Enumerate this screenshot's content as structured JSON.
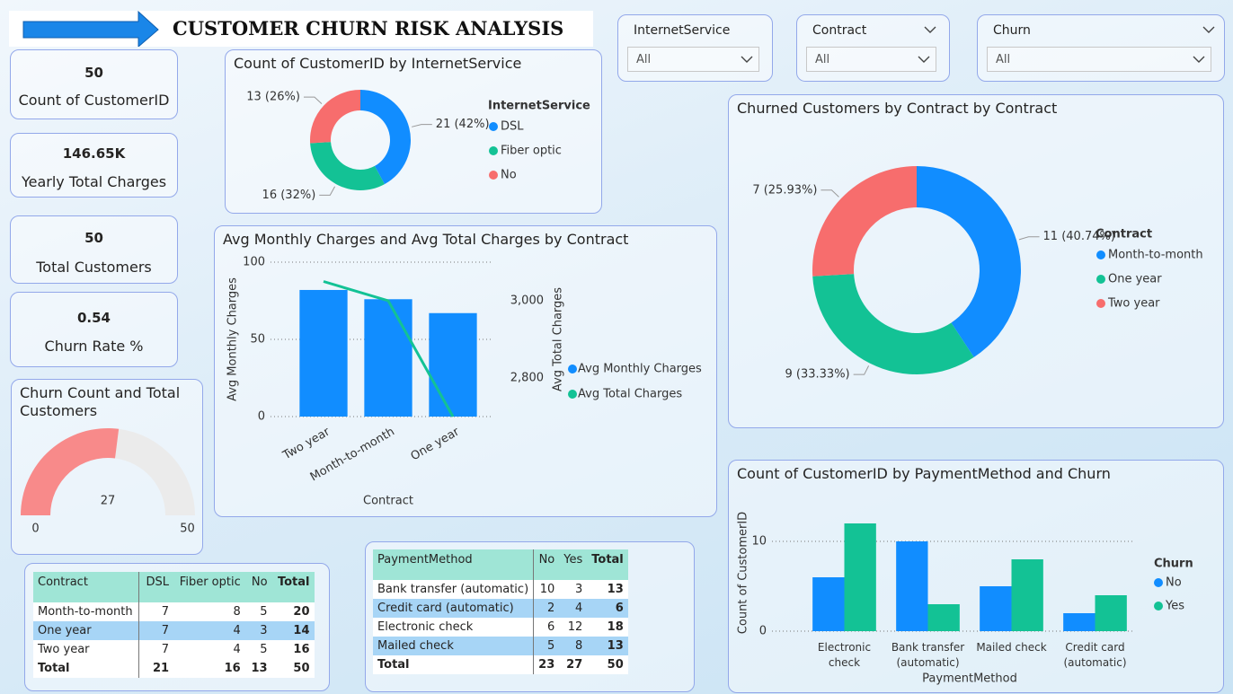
{
  "header": {
    "title": "CUSTOMER CHURN RISK ANALYSIS"
  },
  "slicers": [
    {
      "label": "InternetService",
      "value": "All"
    },
    {
      "label": "Contract",
      "value": "All"
    },
    {
      "label": "Churn",
      "value": "All"
    }
  ],
  "kpis": [
    {
      "value": 50,
      "label": "Count of CustomerID"
    },
    {
      "value": "146.65K",
      "label": "Yearly Total Charges"
    },
    {
      "value": 50,
      "label": "Total Customers"
    },
    {
      "value": 0.54,
      "label": "Churn Rate %"
    }
  ],
  "chart_data": [
    {
      "type": "pie",
      "title": "Count of CustomerID by InternetService",
      "legend_title": "InternetService",
      "categories": [
        "DSL",
        "Fiber optic",
        "No"
      ],
      "values": [
        21,
        16,
        13
      ],
      "value_labels": [
        "21 (42%)",
        "16 (32%)",
        "13 (26%)"
      ],
      "colors": [
        "#118dff",
        "#13c295",
        "#f76d6d"
      ]
    },
    {
      "type": "combo",
      "title": "Avg Monthly Charges and Avg Total Charges by Contract",
      "categories": [
        "Two year",
        "Month-to-month",
        "One year"
      ],
      "series": [
        {
          "name": "Avg Monthly Charges",
          "type": "bar",
          "color": "#118dff",
          "values": [
            82,
            76,
            67
          ]
        },
        {
          "name": "Avg Total Charges",
          "type": "line",
          "axis": "y2",
          "color": "#13c295",
          "values": [
            3050,
            3000,
            2700
          ]
        }
      ],
      "ylim": [
        0,
        100
      ],
      "yticks": [
        0,
        50,
        100
      ],
      "y2lim": [
        2700,
        3100
      ],
      "y2ticks": [
        {
          "value": 2800,
          "label": "2,800"
        },
        {
          "value": 3000,
          "label": "3,000"
        }
      ],
      "xlabel": "Contract",
      "ylabel": "Avg Monthly Charges",
      "y2label": "Avg Total Charges",
      "grid": true
    },
    {
      "type": "pie",
      "title": "Churned Customers by Contract by Contract",
      "legend_title": "Contract",
      "categories": [
        "Month-to-month",
        "One year",
        "Two year"
      ],
      "values": [
        11,
        9,
        7
      ],
      "value_labels": [
        "11 (40.74%)",
        "9 (33.33%)",
        "7 (25.93%)"
      ],
      "colors": [
        "#118dff",
        "#13c295",
        "#f76d6d"
      ]
    },
    {
      "type": "gauge",
      "title": "Churn Count and Total Customers",
      "value": 27,
      "min": 0,
      "max": 50,
      "color": "#f88a8a"
    },
    {
      "type": "bar",
      "title": "Count of CustomerID by PaymentMethod and Churn",
      "categories": [
        "Electronic check",
        "Bank transfer (automatic)",
        "Mailed check",
        "Credit card (automatic)"
      ],
      "series": [
        {
          "name": "No",
          "color": "#118dff",
          "values": [
            6,
            10,
            5,
            2
          ]
        },
        {
          "name": "Yes",
          "color": "#13c295",
          "values": [
            12,
            3,
            8,
            4
          ]
        }
      ],
      "ylim": [
        0,
        13
      ],
      "yticks": [
        0,
        10
      ],
      "xlabel": "PaymentMethod",
      "ylabel": "Count of CustomerID",
      "legend_title": "Churn",
      "grid": true
    }
  ],
  "tables": [
    {
      "columns": [
        "Contract",
        "DSL",
        "Fiber optic",
        "No",
        "Total"
      ],
      "rows": [
        [
          "Month-to-month",
          7,
          8,
          5,
          20
        ],
        [
          "One year",
          7,
          4,
          3,
          14
        ],
        [
          "Two year",
          7,
          4,
          5,
          16
        ]
      ],
      "total": [
        "Total",
        21,
        16,
        13,
        50
      ]
    },
    {
      "columns": [
        "PaymentMethod",
        "No",
        "Yes",
        "Total"
      ],
      "rows": [
        [
          "Bank transfer (automatic)",
          10,
          3,
          13
        ],
        [
          "Credit card (automatic)",
          2,
          4,
          6
        ],
        [
          "Electronic check",
          6,
          12,
          18
        ],
        [
          "Mailed check",
          5,
          8,
          13
        ]
      ],
      "total": [
        "Total",
        23,
        27,
        50
      ]
    }
  ]
}
